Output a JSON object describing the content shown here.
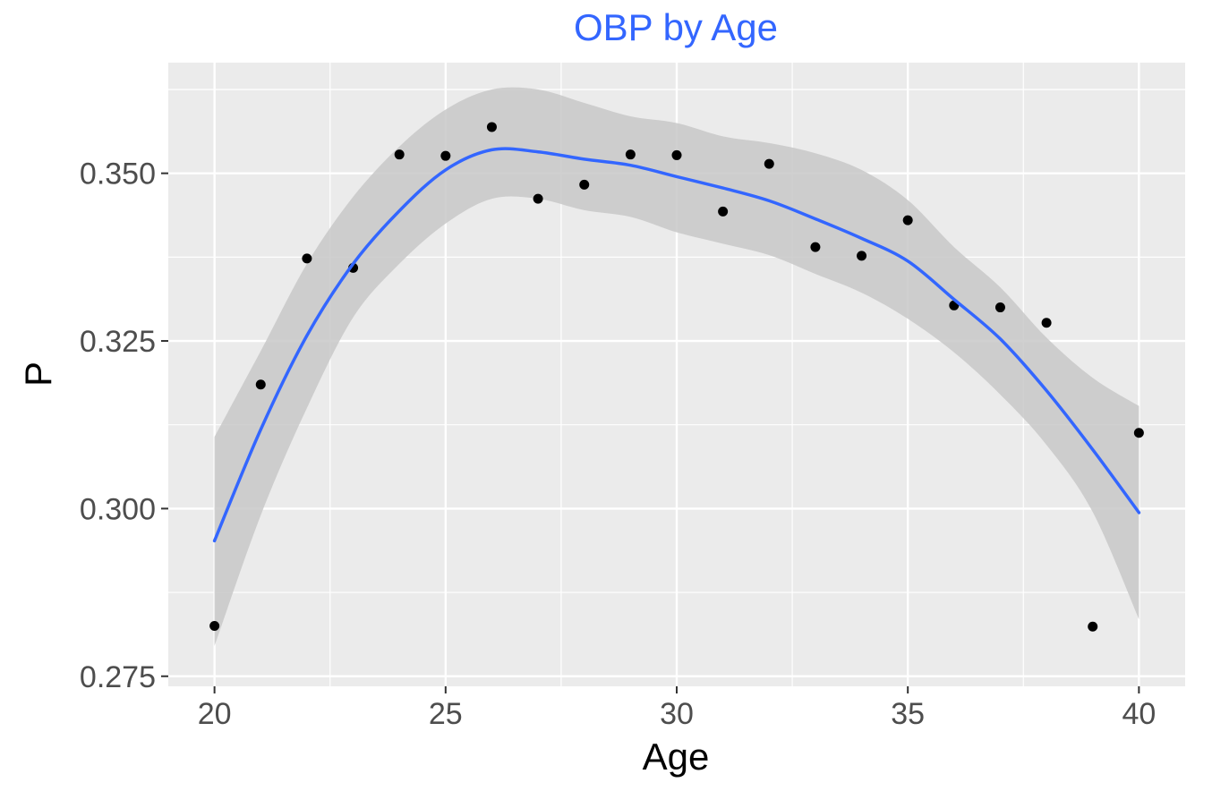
{
  "chart_data": {
    "type": "scatter",
    "title": "OBP by Age",
    "xlabel": "Age",
    "ylabel": "P",
    "xlim": [
      19,
      41
    ],
    "ylim": [
      0.2735,
      0.3665
    ],
    "x_ticks": [
      20,
      25,
      30,
      35,
      40
    ],
    "x_tick_labels": [
      "20",
      "25",
      "30",
      "35",
      "40"
    ],
    "y_ticks": [
      0.275,
      0.3,
      0.325,
      0.35
    ],
    "y_tick_labels": [
      "0.275",
      "0.300",
      "0.325",
      "0.350"
    ],
    "grid": true,
    "legend": "none",
    "points": {
      "x": [
        20,
        21,
        22,
        23,
        24,
        25,
        26,
        27,
        28,
        29,
        30,
        31,
        32,
        33,
        34,
        35,
        36,
        37,
        38,
        39,
        40
      ],
      "y": [
        0.2825,
        0.3185,
        0.3373,
        0.3359,
        0.3528,
        0.3526,
        0.3569,
        0.3462,
        0.3483,
        0.3528,
        0.3527,
        0.3443,
        0.3514,
        0.339,
        0.3377,
        0.343,
        0.3303,
        0.33,
        0.3277,
        0.2824,
        0.3113
      ]
    },
    "smooth": {
      "method": "loess",
      "x": [
        20,
        21,
        22,
        23,
        24,
        25,
        26,
        27,
        28,
        29,
        30,
        31,
        32,
        33,
        34,
        35,
        36,
        37,
        38,
        39,
        40
      ],
      "fit": [
        0.2952,
        0.3118,
        0.3258,
        0.3365,
        0.3444,
        0.3505,
        0.3535,
        0.3532,
        0.3521,
        0.3512,
        0.3495,
        0.3478,
        0.3459,
        0.3432,
        0.3403,
        0.3369,
        0.3312,
        0.3253,
        0.3176,
        0.3088,
        0.2994
      ],
      "lower": [
        0.2795,
        0.299,
        0.315,
        0.3285,
        0.3365,
        0.3425,
        0.3462,
        0.3462,
        0.3445,
        0.3435,
        0.3412,
        0.3395,
        0.3378,
        0.335,
        0.3322,
        0.3283,
        0.3233,
        0.317,
        0.3095,
        0.2995,
        0.2835
      ],
      "upper": [
        0.3107,
        0.3235,
        0.3365,
        0.3465,
        0.354,
        0.3595,
        0.3625,
        0.3625,
        0.3605,
        0.3585,
        0.3575,
        0.3555,
        0.3545,
        0.353,
        0.3505,
        0.346,
        0.339,
        0.333,
        0.3255,
        0.3195,
        0.3153
      ]
    },
    "colors": {
      "title": "#3366FF",
      "smooth_line": "#3366FF",
      "ribbon": "#C8C8C8",
      "panel": "#EBEBEB",
      "grid": "#FFFFFF",
      "points": "#000000"
    }
  }
}
